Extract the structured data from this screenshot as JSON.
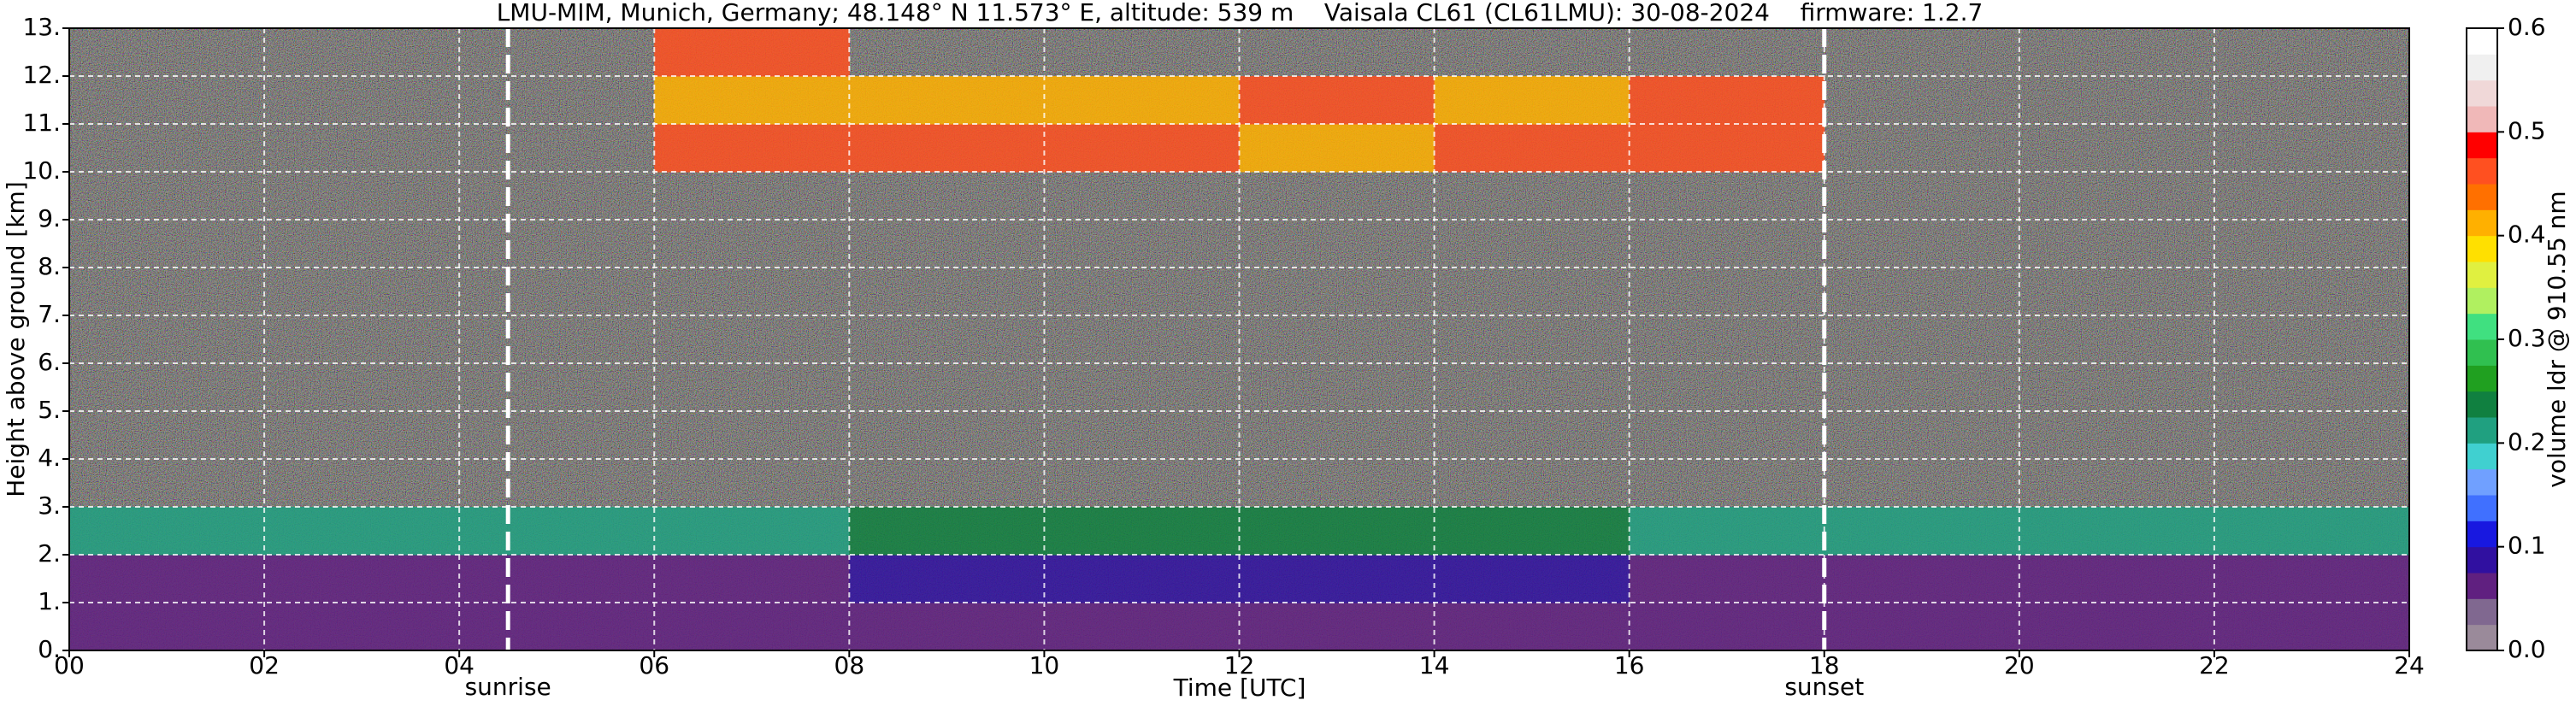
{
  "chart_data": {
    "type": "heatmap",
    "title": "LMU-MIM, Munich, Germany; 48.148° N 11.573° E, altitude: 539 m    Vaisala CL61 (CL61LMU): 30-08-2024    firmware: 1.2.7",
    "xlabel": "Time [UTC]",
    "ylabel": "Height above ground [km]",
    "xlim": [
      0,
      24
    ],
    "ylim": [
      0,
      13
    ],
    "xticks": [
      {
        "value": 0,
        "label": "00"
      },
      {
        "value": 2,
        "label": "02"
      },
      {
        "value": 4,
        "label": "04"
      },
      {
        "value": 6,
        "label": "06"
      },
      {
        "value": 8,
        "label": "08"
      },
      10,
      12,
      14,
      16,
      18,
      20,
      22,
      24
    ],
    "yticks": [
      {
        "value": 0,
        "label": "0."
      },
      {
        "value": 1,
        "label": "1."
      },
      {
        "value": 2,
        "label": "2."
      },
      {
        "value": 3,
        "label": "3."
      },
      {
        "value": 4,
        "label": "4."
      },
      {
        "value": 5,
        "label": "5."
      },
      {
        "value": 6,
        "label": "6."
      },
      {
        "value": 7,
        "label": "7."
      },
      {
        "value": 8,
        "label": "8."
      },
      {
        "value": 9,
        "label": "9."
      },
      {
        "value": 10,
        "label": "10."
      },
      {
        "value": 11,
        "label": "11."
      },
      {
        "value": 12,
        "label": "12."
      },
      {
        "value": 13,
        "label": "13."
      }
    ],
    "grid": true,
    "z": [
      [
        0.07,
        0.07,
        0.06,
        0.06,
        0.05,
        0.05,
        0.06,
        0.06,
        0.07,
        0.05,
        0.06,
        0.06
      ],
      [
        0.06,
        0.06,
        0.07,
        0.07,
        0.08,
        0.08,
        0.08,
        0.08,
        0.07,
        0.06,
        0.06,
        0.06
      ],
      [
        0.2,
        0.2,
        0.21,
        0.22,
        0.23,
        0.23,
        0.23,
        0.23,
        0.22,
        0.21,
        0.2,
        0.2
      ],
      [
        null,
        null,
        null,
        null,
        null,
        null,
        null,
        null,
        null,
        null,
        null,
        null
      ],
      [
        null,
        null,
        null,
        null,
        null,
        null,
        null,
        null,
        null,
        null,
        null,
        null
      ],
      [
        null,
        null,
        null,
        null,
        null,
        null,
        null,
        null,
        null,
        null,
        null,
        null
      ],
      [
        null,
        null,
        null,
        null,
        null,
        null,
        null,
        null,
        null,
        null,
        null,
        null
      ],
      [
        null,
        null,
        null,
        null,
        null,
        null,
        null,
        null,
        null,
        null,
        null,
        null
      ],
      [
        null,
        null,
        null,
        null,
        null,
        null,
        null,
        null,
        null,
        null,
        null,
        null
      ],
      [
        null,
        null,
        null,
        null,
        null,
        null,
        null,
        null,
        null,
        null,
        null,
        null
      ],
      [
        null,
        null,
        null,
        0.45,
        0.45,
        0.45,
        0.42,
        0.45,
        0.45,
        null,
        null,
        null
      ],
      [
        null,
        null,
        null,
        0.42,
        0.4,
        0.42,
        0.45,
        0.42,
        0.45,
        null,
        null,
        null
      ],
      [
        null,
        null,
        null,
        0.45,
        null,
        null,
        null,
        null,
        null,
        null,
        null,
        null
      ]
    ],
    "colormap": [
      "#9a8a9a",
      "#806890",
      "#602080",
      "#3010a0",
      "#1818e0",
      "#4070ff",
      "#70a0ff",
      "#40d0d0",
      "#20a080",
      "#108040",
      "#20a020",
      "#30c050",
      "#40e080",
      "#b0f060",
      "#e0f040",
      "#ffe000",
      "#ffb000",
      "#ff7000",
      "#ff5020",
      "#ff0000",
      "#f0b8b8",
      "#f0d8d8",
      "#f0f0f0",
      "#ffffff"
    ],
    "clim": [
      0,
      0.6
    ],
    "cticks": [
      {
        "value": 0,
        "label": "0.0"
      },
      0.1,
      0.2,
      0.3,
      0.4,
      0.5,
      0.6
    ],
    "clabel": "volume ldr @ 910.55 nm",
    "vlines": [
      {
        "x": 4.5,
        "label": "sunrise"
      },
      {
        "x": 18,
        "label": "sunset"
      }
    ]
  }
}
